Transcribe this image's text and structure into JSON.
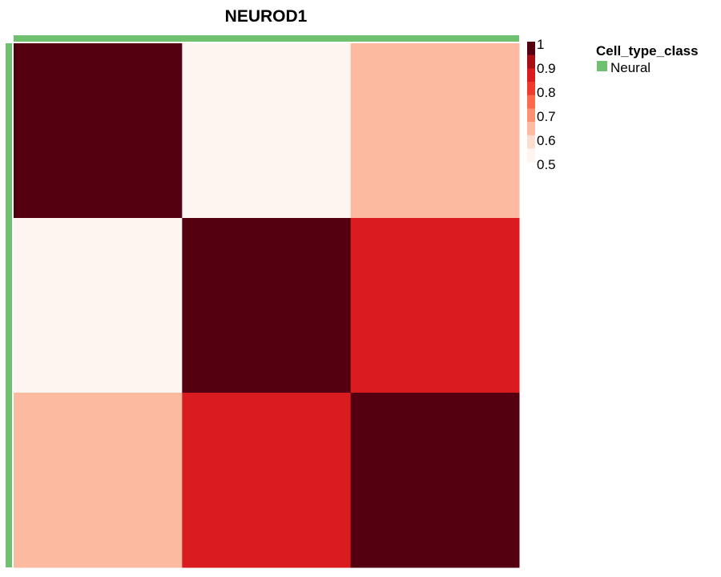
{
  "chart_data": {
    "type": "heatmap",
    "title": "NEUROD1",
    "matrix": [
      [
        1.0,
        0.5,
        0.6
      ],
      [
        0.5,
        1.0,
        0.85
      ],
      [
        0.6,
        0.85,
        1.0
      ]
    ],
    "color_scale": {
      "min": 0.5,
      "max": 1.0,
      "ticks": [
        "1",
        "0.9",
        "0.8",
        "0.7",
        "0.6",
        "0.5"
      ],
      "colors": [
        "#FFF5F0",
        "#FCDED0",
        "#FCBBA1",
        "#FC9272",
        "#FB6A4A",
        "#EF3B2C",
        "#DA1B1F",
        "#A60F15",
        "#550010"
      ]
    },
    "annotation": {
      "title": "Cell_type_class",
      "categories": [
        {
          "label": "Neural",
          "color": "#6FC16F"
        }
      ]
    }
  }
}
